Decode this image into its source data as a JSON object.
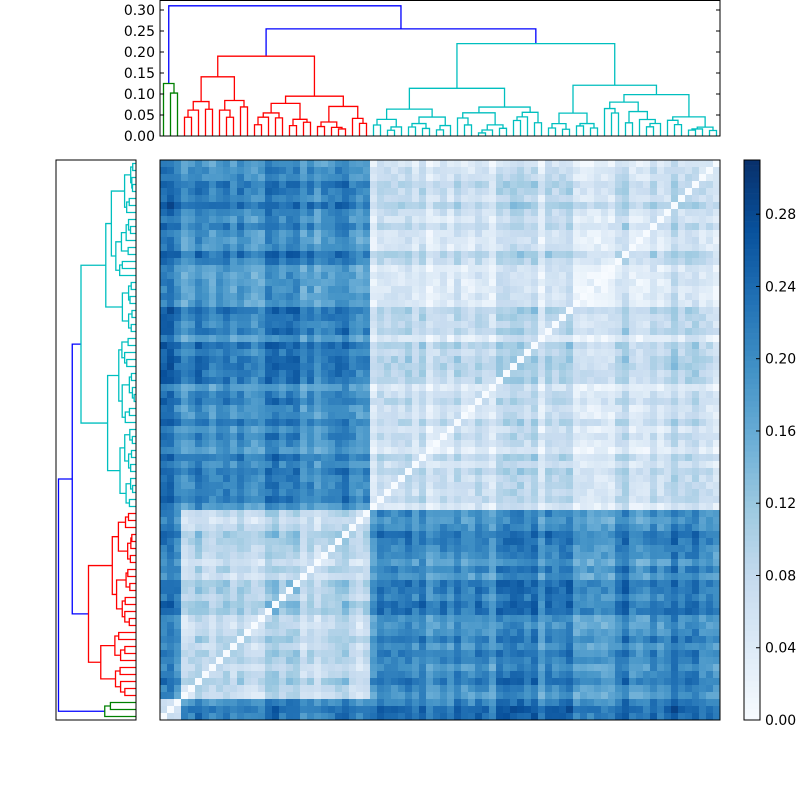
{
  "chart_data": {
    "type": "heatmap",
    "title": "",
    "description_kind": "clustered distance matrix with dendrograms",
    "leaf_count": 80,
    "linkage": {
      "root_height": 0.31,
      "inner_height": 0.255,
      "link_color": "#0000ff",
      "clusters": [
        {
          "name": "green",
          "color": "#008000",
          "leaves": 3,
          "height": 0.125
        },
        {
          "name": "red",
          "color": "#ff0000",
          "leaves": 27,
          "height": 0.19
        },
        {
          "name": "cyan",
          "color": "#00bfbf",
          "leaves": 50,
          "height": 0.22
        }
      ]
    },
    "block_mean_distance": {
      "green-green": 0.05,
      "green-red": 0.2,
      "green-cyan": 0.22,
      "red-red": 0.08,
      "red-cyan": 0.2,
      "cyan-cyan": 0.07
    },
    "value_range": [
      0,
      0.31
    ],
    "colormap": "Blues",
    "colormap_stops": [
      "#f7fbff",
      "#deebf7",
      "#c6dbef",
      "#9ecae1",
      "#6baed6",
      "#4292c6",
      "#2171b5",
      "#08519c",
      "#08306b"
    ],
    "top_dendrogram_yticks": [
      "0.00",
      "0.05",
      "0.10",
      "0.15",
      "0.20",
      "0.25",
      "0.30"
    ],
    "top_dendrogram_ytick_values": [
      0,
      0.05,
      0.1,
      0.15,
      0.2,
      0.25,
      0.3
    ],
    "top_dendrogram_ylim": [
      0,
      0.324
    ],
    "colorbar_ticks": [
      "0.00",
      "0.04",
      "0.08",
      "0.12",
      "0.16",
      "0.20",
      "0.24",
      "0.28"
    ],
    "colorbar_tick_values": [
      0,
      0.04,
      0.08,
      0.12,
      0.16,
      0.2,
      0.24,
      0.28
    ]
  }
}
